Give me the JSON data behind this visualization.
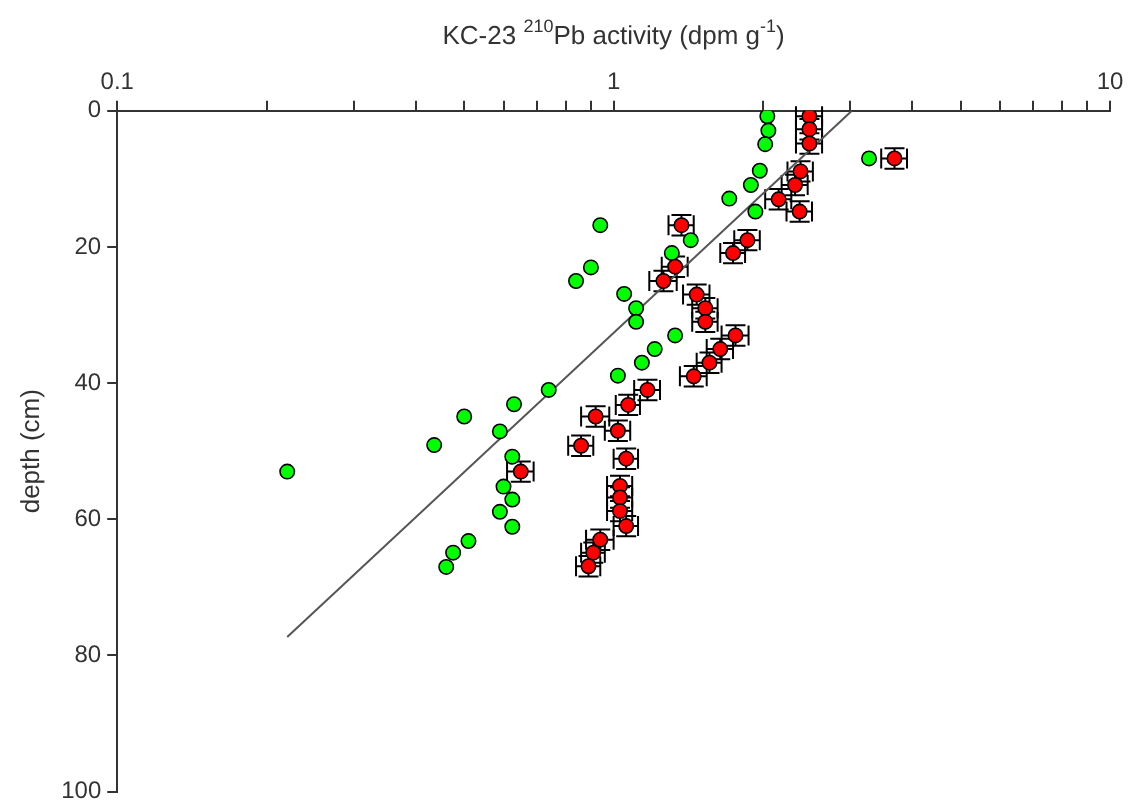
{
  "chart_data": {
    "type": "scatter",
    "xlabel": "KC-23 $^{210}$Pb activity (dpm g$^{-1}$)",
    "ylabel": "depth (cm)",
    "log": "x",
    "xlim": [
      0.1,
      10
    ],
    "xticks": [
      0.1,
      {
        "value": 0.2,
        "label": null
      },
      {
        "value": 0.3,
        "label": null
      },
      {
        "value": 0.4,
        "label": null
      },
      {
        "value": 0.5,
        "label": null
      },
      {
        "value": 0.6,
        "label": null
      },
      {
        "value": 0.7,
        "label": null
      },
      {
        "value": 0.8,
        "label": null
      },
      {
        "value": 0.9,
        "label": null
      },
      1,
      {
        "value": 2,
        "label": null
      },
      {
        "value": 3,
        "label": null
      },
      {
        "value": 4,
        "label": null
      },
      {
        "value": 5,
        "label": null
      },
      {
        "value": 6,
        "label": null
      },
      {
        "value": 7,
        "label": null
      },
      {
        "value": 8,
        "label": null
      },
      {
        "value": 9,
        "label": null
      },
      10
    ],
    "ylim": [
      100,
      0
    ],
    "yticks": [
      0,
      20,
      40,
      60,
      80,
      100
    ],
    "grid": false,
    "legend": false,
    "marker": "circle",
    "series": [
      {
        "color": "#00ff00",
        "x": [
          2.04,
          2.05,
          2.02,
          3.27,
          1.97,
          1.89,
          1.71,
          1.93,
          0.94,
          1.43,
          1.31,
          0.9,
          0.84,
          1.05,
          1.11,
          1.11,
          1.33,
          1.21,
          1.14,
          1.02,
          0.74,
          0.63,
          0.5,
          0.59,
          0.435,
          0.625,
          0.22,
          0.6,
          0.625,
          0.59,
          0.625,
          0.51,
          0.475,
          0.46
        ],
        "values": [
          0.8,
          2.9,
          4.9,
          7.0,
          8.8,
          10.9,
          12.9,
          14.8,
          16.8,
          19.0,
          20.9,
          23.0,
          25.0,
          26.9,
          29.0,
          31.0,
          33.0,
          35.0,
          37.0,
          38.9,
          41.0,
          43.1,
          44.9,
          47.1,
          49.1,
          50.8,
          53.0,
          55.2,
          57.1,
          58.9,
          61.1,
          63.2,
          64.9,
          67.0
        ]
      },
      {
        "color": "#ff0000",
        "x": [
          2.48,
          2.48,
          2.48,
          3.68,
          2.38,
          2.32,
          2.15,
          2.37,
          1.37,
          1.86,
          1.74,
          1.33,
          1.26,
          1.47,
          1.53,
          1.53,
          1.76,
          1.64,
          1.56,
          1.45,
          1.17,
          1.07,
          0.92,
          1.02,
          0.86,
          1.06,
          0.65,
          1.03,
          1.03,
          1.03,
          1.06,
          0.94,
          0.91,
          0.89
        ],
        "values": [
          0.8,
          2.7,
          4.8,
          7.0,
          8.9,
          10.9,
          13.0,
          14.8,
          16.8,
          19.0,
          20.9,
          22.9,
          25.0,
          27.0,
          29.0,
          31.0,
          33.0,
          35.0,
          37.0,
          39.0,
          41.0,
          43.2,
          44.9,
          47.0,
          49.2,
          51.1,
          53.0,
          55.1,
          56.8,
          58.8,
          61.0,
          63.0,
          64.9,
          66.9
        ],
        "errors": [
          null,
          1.5,
          1.5,
          1.5,
          1.5,
          1.5,
          1.5,
          1.5,
          1.5,
          1.5,
          1.5,
          1.5,
          1.5,
          1.5,
          1.5,
          1.5,
          1.5,
          1.5,
          1.5,
          1.5,
          1.5,
          1.5,
          1.5,
          1.5,
          1.5,
          1.5,
          1.5,
          1.5,
          1.5,
          1.5,
          1.5,
          1.5,
          1.5,
          1.5
        ],
        "xerrors": [
          0.15,
          0.15,
          0.15,
          0.22,
          0.14,
          0.14,
          0.13,
          0.14,
          0.08,
          0.11,
          0.1,
          0.08,
          0.08,
          0.09,
          0.09,
          0.09,
          0.11,
          0.1,
          0.09,
          0.09,
          0.07,
          0.06,
          0.06,
          0.06,
          0.05,
          0.06,
          0.04,
          0.06,
          0.06,
          0.06,
          0.06,
          0.06,
          0.05,
          0.05
        ]
      },
      {
        "type": "line",
        "marker": "none",
        "color": "#555555",
        "x": [
          3.02,
          0.22
        ],
        "values": [
          0,
          77.3
        ]
      }
    ]
  }
}
